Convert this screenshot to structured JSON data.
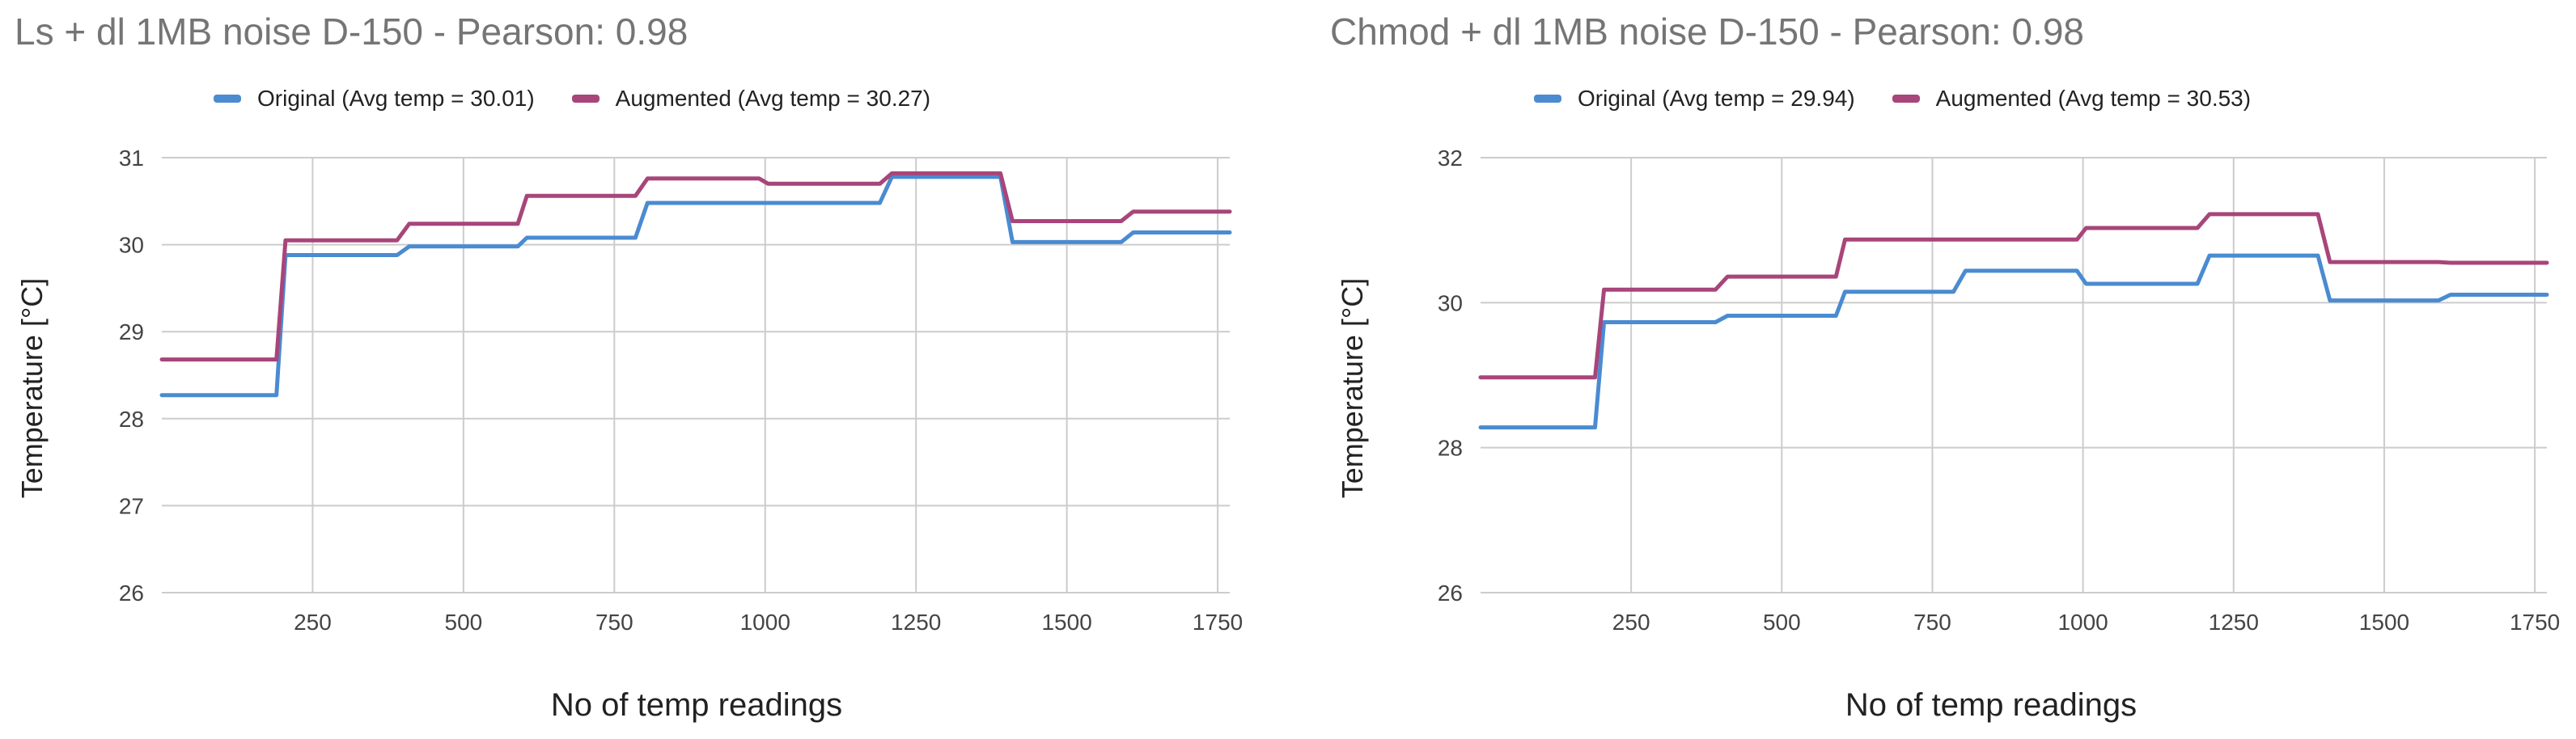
{
  "charts": [
    {
      "title": "Ls + dl 1MB noise D-150 - Pearson: 0.98",
      "xlabel": "No of temp readings",
      "ylabel": "Temperature [°C]"
    },
    {
      "title": "Chmod + dl 1MB noise D-150 - Pearson: 0.98",
      "xlabel": "No of temp readings",
      "ylabel": "Temperature [°C]"
    }
  ],
  "chart_data": [
    {
      "type": "line",
      "title": "Ls + dl 1MB noise D-150 - Pearson: 0.98",
      "xlabel": "No of temp readings",
      "ylabel": "Temperature [°C]",
      "xlim": [
        0,
        1770
      ],
      "ylim": [
        26,
        31
      ],
      "x_ticks": [
        250,
        500,
        750,
        1000,
        1250,
        1500,
        1750
      ],
      "y_ticks": [
        26,
        27,
        28,
        29,
        30,
        31
      ],
      "grid": true,
      "legend_position": "top",
      "series": [
        {
          "name": "Original (Avg temp = 30.01)",
          "color": "#4a8bd1",
          "points": [
            [
              0,
              28.27
            ],
            [
              190,
              28.27
            ],
            [
              205,
              29.88
            ],
            [
              390,
              29.88
            ],
            [
              410,
              29.98
            ],
            [
              590,
              29.98
            ],
            [
              605,
              30.08
            ],
            [
              785,
              30.08
            ],
            [
              805,
              30.48
            ],
            [
              990,
              30.48
            ],
            [
              1005,
              30.48
            ],
            [
              1190,
              30.48
            ],
            [
              1210,
              30.78
            ],
            [
              1390,
              30.78
            ],
            [
              1410,
              30.03
            ],
            [
              1590,
              30.03
            ],
            [
              1610,
              30.14
            ],
            [
              1770,
              30.14
            ]
          ]
        },
        {
          "name": "Augmented (Avg temp = 30.27)",
          "color": "#a8457a",
          "points": [
            [
              0,
              28.68
            ],
            [
              190,
              28.68
            ],
            [
              205,
              30.05
            ],
            [
              390,
              30.05
            ],
            [
              410,
              30.24
            ],
            [
              590,
              30.24
            ],
            [
              605,
              30.56
            ],
            [
              785,
              30.56
            ],
            [
              805,
              30.76
            ],
            [
              990,
              30.76
            ],
            [
              1005,
              30.7
            ],
            [
              1190,
              30.7
            ],
            [
              1210,
              30.82
            ],
            [
              1390,
              30.82
            ],
            [
              1410,
              30.27
            ],
            [
              1590,
              30.27
            ],
            [
              1610,
              30.38
            ],
            [
              1770,
              30.38
            ]
          ]
        }
      ]
    },
    {
      "type": "line",
      "title": "Chmod + dl 1MB noise D-150 - Pearson: 0.98",
      "xlabel": "No of temp readings",
      "ylabel": "Temperature [°C]",
      "xlim": [
        0,
        1770
      ],
      "ylim": [
        26,
        32
      ],
      "x_ticks": [
        250,
        500,
        750,
        1000,
        1250,
        1500,
        1750
      ],
      "y_ticks": [
        26,
        28,
        30,
        32
      ],
      "grid": true,
      "legend_position": "top",
      "series": [
        {
          "name": "Original (Avg temp = 29.94)",
          "color": "#4a8bd1",
          "points": [
            [
              0,
              28.28
            ],
            [
              190,
              28.28
            ],
            [
              205,
              29.73
            ],
            [
              390,
              29.73
            ],
            [
              410,
              29.82
            ],
            [
              590,
              29.82
            ],
            [
              605,
              30.15
            ],
            [
              785,
              30.15
            ],
            [
              805,
              30.44
            ],
            [
              990,
              30.44
            ],
            [
              1005,
              30.26
            ],
            [
              1190,
              30.26
            ],
            [
              1210,
              30.65
            ],
            [
              1390,
              30.65
            ],
            [
              1410,
              30.03
            ],
            [
              1590,
              30.03
            ],
            [
              1610,
              30.11
            ],
            [
              1770,
              30.11
            ]
          ]
        },
        {
          "name": "Augmented (Avg temp = 30.53)",
          "color": "#a8457a",
          "points": [
            [
              0,
              28.97
            ],
            [
              190,
              28.97
            ],
            [
              205,
              30.18
            ],
            [
              390,
              30.18
            ],
            [
              410,
              30.36
            ],
            [
              590,
              30.36
            ],
            [
              605,
              30.87
            ],
            [
              785,
              30.87
            ],
            [
              805,
              30.87
            ],
            [
              990,
              30.87
            ],
            [
              1005,
              31.03
            ],
            [
              1190,
              31.03
            ],
            [
              1210,
              31.22
            ],
            [
              1390,
              31.22
            ],
            [
              1410,
              30.56
            ],
            [
              1590,
              30.56
            ],
            [
              1610,
              30.55
            ],
            [
              1770,
              30.55
            ]
          ]
        }
      ]
    }
  ]
}
